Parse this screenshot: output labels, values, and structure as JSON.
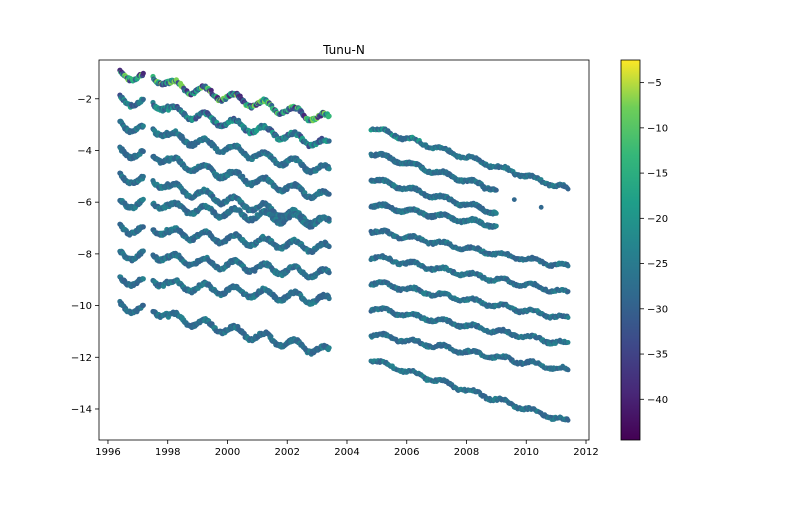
{
  "chart_data": {
    "type": "scatter",
    "title": "Tunu-N",
    "xlabel": "",
    "ylabel": "",
    "xlim": [
      1995.7,
      2012.1
    ],
    "ylim": [
      -15.2,
      -0.5
    ],
    "xticks": [
      1996,
      1998,
      2000,
      2002,
      2004,
      2006,
      2008,
      2010,
      2012
    ],
    "yticks": [
      -2,
      -4,
      -6,
      -8,
      -10,
      -12,
      -14
    ],
    "grid": false,
    "colorbar": {
      "colormap": "viridis",
      "range": [
        -44.5,
        -2.5
      ],
      "ticks": [
        -5,
        -10,
        -15,
        -20,
        -25,
        -30,
        -35,
        -40
      ]
    },
    "series": [
      {
        "depth": 1,
        "segments": [
          [
            1996.4,
            -1.0,
            2003.4,
            -2.8
          ]
        ]
      },
      {
        "depth": 2,
        "segments": [
          [
            1996.4,
            -2.0,
            2003.4,
            -3.8
          ]
        ]
      },
      {
        "depth": 3,
        "segments": [
          [
            1996.4,
            -3.0,
            2003.4,
            -4.8
          ]
        ]
      },
      {
        "depth": 4,
        "segments": [
          [
            1996.4,
            -4.0,
            2003.4,
            -5.8
          ]
        ]
      },
      {
        "depth": 5,
        "segments": [
          [
            1996.4,
            -5.0,
            2003.4,
            -6.8
          ]
        ]
      },
      {
        "depth": 6,
        "segments": [
          [
            1996.4,
            -6.0,
            2003.4,
            -6.8
          ]
        ]
      },
      {
        "depth": 7,
        "segments": [
          [
            1996.4,
            -7.0,
            2003.4,
            -7.8
          ]
        ]
      },
      {
        "depth": 8,
        "segments": [
          [
            1996.4,
            -8.0,
            2003.4,
            -8.8
          ]
        ]
      },
      {
        "depth": 9,
        "segments": [
          [
            1996.4,
            -9.0,
            2003.4,
            -9.8
          ]
        ]
      },
      {
        "depth": 10,
        "segments": [
          [
            1996.4,
            -10.0,
            2003.4,
            -11.8
          ]
        ]
      }
    ],
    "series_2005_2011": [
      {
        "start": [
          2004.8,
          -3.1
        ],
        "end": [
          2011.4,
          -5.5
        ]
      },
      {
        "start": [
          2004.8,
          -4.1
        ],
        "end": [
          2009.0,
          -5.5
        ]
      },
      {
        "start": [
          2004.8,
          -5.1
        ],
        "end": [
          2009.0,
          -6.4
        ]
      },
      {
        "start": [
          2004.8,
          -6.1
        ],
        "end": [
          2009.0,
          -6.9
        ]
      },
      {
        "start": [
          2004.8,
          -7.1
        ],
        "end": [
          2011.4,
          -8.5
        ]
      },
      {
        "start": [
          2004.8,
          -8.1
        ],
        "end": [
          2011.4,
          -9.5
        ]
      },
      {
        "start": [
          2004.8,
          -9.1
        ],
        "end": [
          2011.4,
          -10.5
        ]
      },
      {
        "start": [
          2004.8,
          -10.1
        ],
        "end": [
          2011.4,
          -11.5
        ]
      },
      {
        "start": [
          2004.8,
          -11.1
        ],
        "end": [
          2011.4,
          -12.5
        ]
      },
      {
        "start": [
          2004.8,
          -12.1
        ],
        "end": [
          2011.4,
          -14.5
        ]
      }
    ]
  }
}
